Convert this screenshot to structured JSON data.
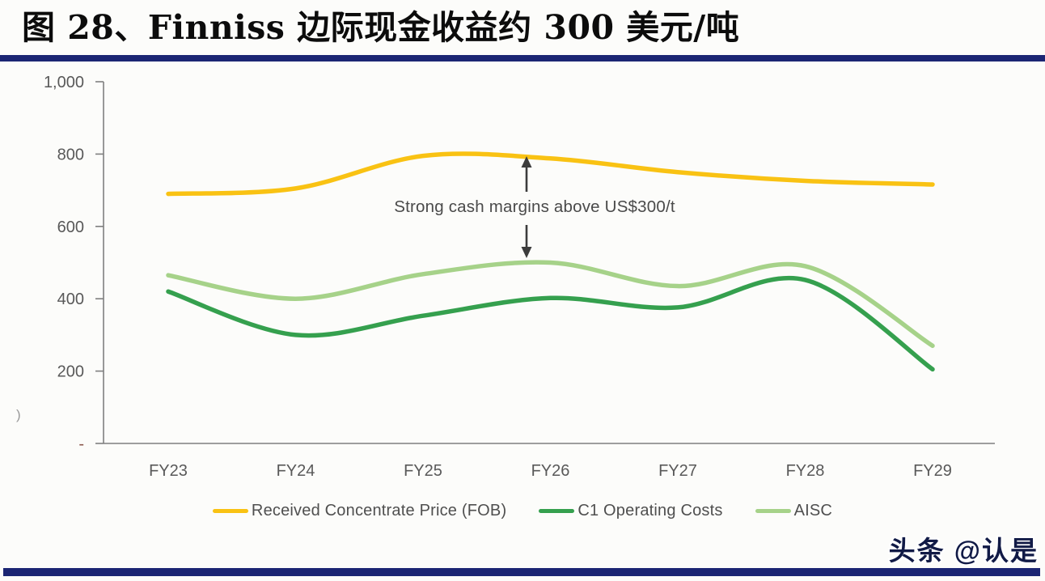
{
  "header": {
    "title": "图 28、Finniss 边际现金收益约 300 美元/吨"
  },
  "watermark": "头条 @认是",
  "legend": [
    {
      "name": "Received Concentrate Price (FOB)",
      "color": "#F9C213"
    },
    {
      "name": "C1 Operating Costs",
      "color": "#35A04E"
    },
    {
      "name": "AISC",
      "color": "#A6D289"
    }
  ],
  "chart_data": {
    "type": "line",
    "title": "图 28、Finniss 边际现金收益约 300 美元/吨",
    "x": [
      "FY23",
      "FY24",
      "FY25",
      "FY26",
      "FY27",
      "FY28",
      "FY29"
    ],
    "series": [
      {
        "name": "Received Concentrate Price (FOB)",
        "color": "#F9C213",
        "values": [
          690,
          705,
          795,
          788,
          750,
          726,
          716
        ]
      },
      {
        "name": "C1 Operating Costs",
        "color": "#35A04E",
        "values": [
          420,
          300,
          353,
          402,
          376,
          452,
          205
        ]
      },
      {
        "name": "AISC",
        "color": "#A6D289",
        "values": [
          465,
          400,
          468,
          500,
          435,
          490,
          270
        ]
      }
    ],
    "ylim": [
      0,
      1000
    ],
    "y_ticks": [
      {
        "label": "1,000",
        "value": 1000
      },
      {
        "label": "800",
        "value": 800
      },
      {
        "label": "600",
        "value": 600
      },
      {
        "label": "400",
        "value": 400
      },
      {
        "label": "200",
        "value": 200
      },
      {
        "label": "-",
        "value": 0
      }
    ],
    "annotation": "Strong cash margins above US$300/t",
    "y_axis_clipped_char": ")",
    "grid": false,
    "legend_position": "bottom"
  }
}
